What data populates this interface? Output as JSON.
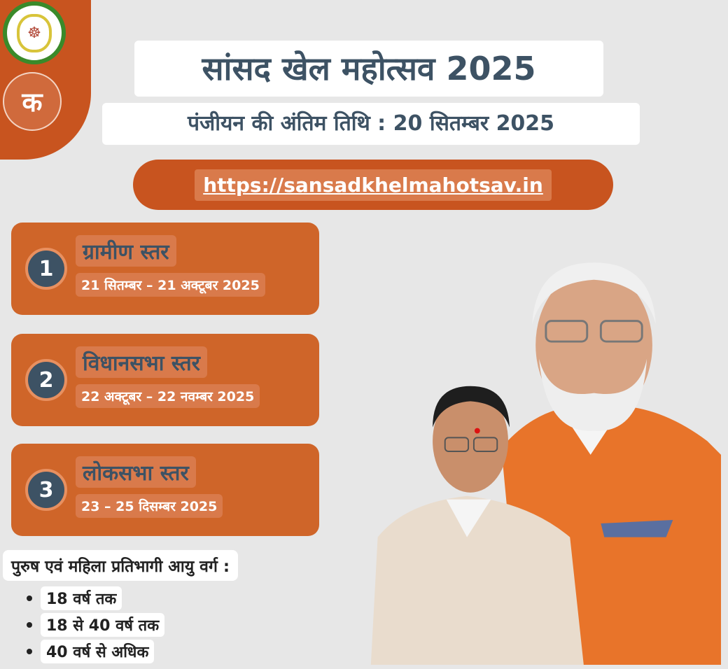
{
  "header": {
    "title": "सांसद खेल महोत्सव 2025",
    "subtitle": "पंजीयन की अंतिम तिथि : 20 सितम्बर 2025",
    "url": "https://sansadkhelmahotsav.in"
  },
  "logos": {
    "emblem": "छत्तीसगढ़ शासन",
    "ka_logo": "क"
  },
  "stages": [
    {
      "number": "1",
      "name": "ग्रामीण स्तर",
      "dates": "21 सितम्बर – 21 अक्टूबर 2025"
    },
    {
      "number": "2",
      "name": "विधानसभा स्तर",
      "dates": "22 अक्टूबर – 22 नवम्बर 2025"
    },
    {
      "number": "3",
      "name": "लोकसभा स्तर",
      "dates": "23 – 25 दिसम्बर 2025"
    }
  ],
  "age_groups": {
    "title": "पुरुष एवं महिला प्रतिभागी आयु वर्ग :",
    "items": [
      "18 वर्ष तक",
      "18 से 40 वर्ष तक",
      "40 वर्ष से अधिक"
    ]
  },
  "colors": {
    "accent": "#c8541f",
    "text": "#3d5264",
    "background": "#e7e7e7"
  }
}
